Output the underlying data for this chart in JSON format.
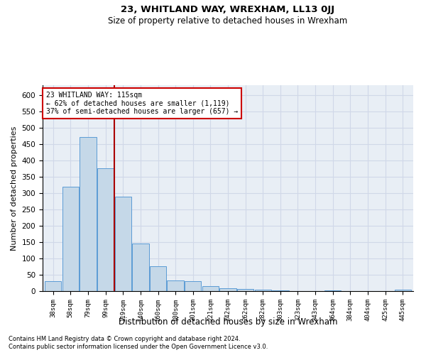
{
  "title": "23, WHITLAND WAY, WREXHAM, LL13 0JJ",
  "subtitle": "Size of property relative to detached houses in Wrexham",
  "xlabel": "Distribution of detached houses by size in Wrexham",
  "ylabel": "Number of detached properties",
  "footnote1": "Contains HM Land Registry data © Crown copyright and database right 2024.",
  "footnote2": "Contains public sector information licensed under the Open Government Licence v3.0.",
  "annotation_line1": "23 WHITLAND WAY: 115sqm",
  "annotation_line2": "← 62% of detached houses are smaller (1,119)",
  "annotation_line3": "37% of semi-detached houses are larger (657) →",
  "categories": [
    "38sqm",
    "58sqm",
    "79sqm",
    "99sqm",
    "119sqm",
    "140sqm",
    "160sqm",
    "180sqm",
    "201sqm",
    "221sqm",
    "242sqm",
    "262sqm",
    "282sqm",
    "303sqm",
    "323sqm",
    "343sqm",
    "364sqm",
    "384sqm",
    "404sqm",
    "425sqm",
    "445sqm"
  ],
  "values": [
    31,
    320,
    472,
    375,
    290,
    145,
    77,
    33,
    30,
    15,
    8,
    7,
    4,
    2,
    1,
    1,
    3,
    0,
    0,
    0,
    4
  ],
  "bar_color": "#c5d8e8",
  "bar_edge_color": "#5b9bd5",
  "vline_color": "#aa0000",
  "grid_color": "#d0d8e8",
  "annotation_box_color": "#ffffff",
  "annotation_box_edge_color": "#cc0000",
  "ylim": [
    0,
    630
  ],
  "yticks": [
    0,
    50,
    100,
    150,
    200,
    250,
    300,
    350,
    400,
    450,
    500,
    550,
    600
  ],
  "fig_background": "#ffffff",
  "ax_background": "#e8eef5"
}
